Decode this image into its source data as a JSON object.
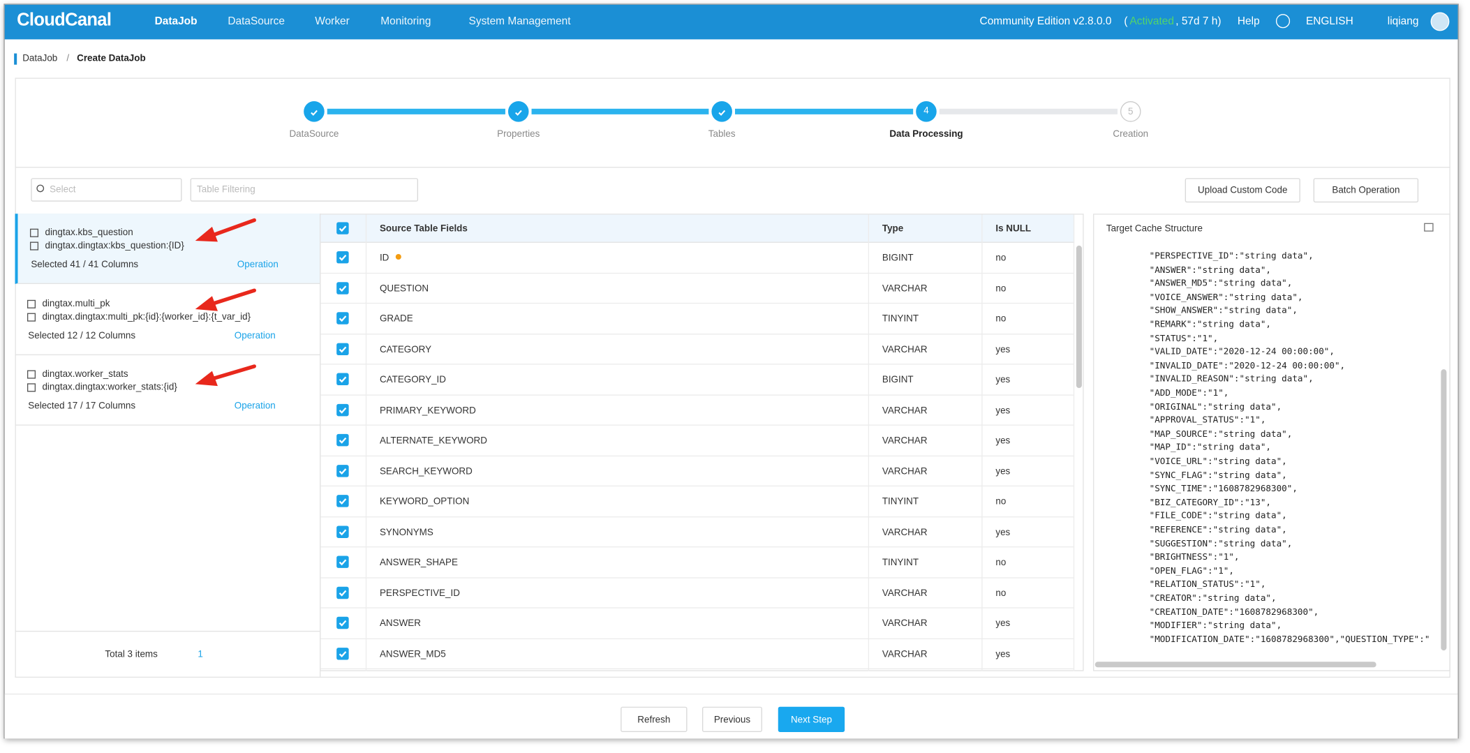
{
  "nav": {
    "logo": "CloudCanal",
    "items": [
      "DataJob",
      "DataSource",
      "Worker",
      "Monitoring",
      "System Management"
    ],
    "edition": "Community Edition v2.8.0.0",
    "status_open": "(",
    "activated": "Activated",
    "remaining": ", 57d 7 h)",
    "help": "Help",
    "language": "ENGLISH",
    "user": "liqiang"
  },
  "breadcrumb": {
    "parent": "DataJob",
    "separator": "/",
    "current": "Create DataJob"
  },
  "steps": [
    {
      "label": "DataSource"
    },
    {
      "label": "Properties"
    },
    {
      "label": "Tables"
    },
    {
      "number": "4",
      "label": "Data Processing"
    },
    {
      "number": "5",
      "label": "Creation"
    }
  ],
  "filters": {
    "select_placeholder": "Select",
    "table_filter_placeholder": "Table Filtering",
    "upload": "Upload Custom Code",
    "batch": "Batch Operation"
  },
  "tables": [
    {
      "source": "dingtax.kbs_question",
      "target": "dingtax.dingtax:kbs_question:{ID}",
      "selected": "Selected 41 / 41 Columns",
      "operation": "Operation"
    },
    {
      "source": "dingtax.multi_pk",
      "target": "dingtax.dingtax:multi_pk:{id}:{worker_id}:{t_var_id}",
      "selected": "Selected 12 / 12 Columns",
      "operation": "Operation"
    },
    {
      "source": "dingtax.worker_stats",
      "target": "dingtax.dingtax:worker_stats:{id}",
      "selected": "Selected 17 / 17 Columns",
      "operation": "Operation"
    }
  ],
  "pagination": {
    "total": "Total 3 items",
    "page": "1"
  },
  "fields_table": {
    "headers": [
      "Source Table Fields",
      "Type",
      "Is NULL"
    ],
    "rows": [
      [
        "ID",
        "BIGINT",
        "no"
      ],
      [
        "QUESTION",
        "VARCHAR",
        "no"
      ],
      [
        "GRADE",
        "TINYINT",
        "no"
      ],
      [
        "CATEGORY",
        "VARCHAR",
        "yes"
      ],
      [
        "CATEGORY_ID",
        "BIGINT",
        "yes"
      ],
      [
        "PRIMARY_KEYWORD",
        "VARCHAR",
        "yes"
      ],
      [
        "ALTERNATE_KEYWORD",
        "VARCHAR",
        "yes"
      ],
      [
        "SEARCH_KEYWORD",
        "VARCHAR",
        "yes"
      ],
      [
        "KEYWORD_OPTION",
        "TINYINT",
        "no"
      ],
      [
        "SYNONYMS",
        "VARCHAR",
        "yes"
      ],
      [
        "ANSWER_SHAPE",
        "TINYINT",
        "no"
      ],
      [
        "PERSPECTIVE_ID",
        "VARCHAR",
        "no"
      ],
      [
        "ANSWER",
        "VARCHAR",
        "yes"
      ],
      [
        "ANSWER_MD5",
        "VARCHAR",
        "yes"
      ]
    ]
  },
  "cache": {
    "title": "Target Cache Structure",
    "lines": [
      "\"PERSPECTIVE_ID\":\"string data\",",
      "\"ANSWER\":\"string data\",",
      "\"ANSWER_MD5\":\"string data\",",
      "\"VOICE_ANSWER\":\"string data\",",
      "\"SHOW_ANSWER\":\"string data\",",
      "\"REMARK\":\"string data\",",
      "\"STATUS\":\"1\",",
      "\"VALID_DATE\":\"2020-12-24 00:00:00\",",
      "\"INVALID_DATE\":\"2020-12-24 00:00:00\",",
      "\"INVALID_REASON\":\"string data\",",
      "\"ADD_MODE\":\"1\",",
      "\"ORIGINAL\":\"string data\",",
      "\"APPROVAL_STATUS\":\"1\",",
      "\"MAP_SOURCE\":\"string data\",",
      "\"MAP_ID\":\"string data\",",
      "\"VOICE_URL\":\"string data\",",
      "\"SYNC_FLAG\":\"string data\",",
      "\"SYNC_TIME\":\"1608782968300\",",
      "\"BIZ_CATEGORY_ID\":\"13\",",
      "\"FILE_CODE\":\"string data\",",
      "\"REFERENCE\":\"string data\",",
      "\"SUGGESTION\":\"string data\",",
      "\"BRIGHTNESS\":\"1\",",
      "\"OPEN_FLAG\":\"1\",",
      "\"RELATION_STATUS\":\"1\",",
      "\"CREATOR\":\"string data\",",
      "\"CREATION_DATE\":\"1608782968300\",",
      "\"MODIFIER\":\"string data\",",
      "\"MODIFICATION_DATE\":\"1608782968300\",\"QUESTION_TYPE\":\""
    ]
  },
  "footer": {
    "refresh": "Refresh",
    "previous": "Previous",
    "next": "Next Step"
  }
}
